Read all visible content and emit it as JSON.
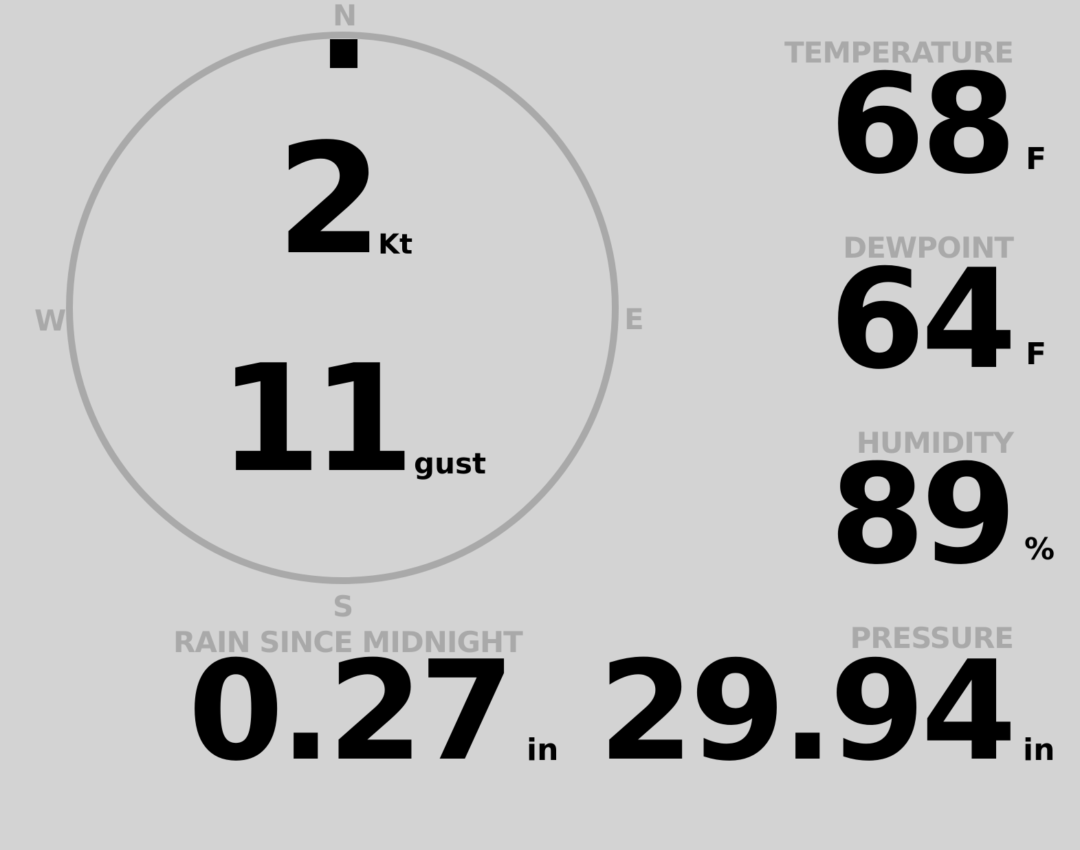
{
  "compass": {
    "north": "N",
    "south": "S",
    "east": "E",
    "west": "W",
    "wind_direction_deg": 0,
    "wind_speed": "2",
    "wind_speed_unit": "Kt",
    "gust": "11",
    "gust_unit": "gust",
    "colors": {
      "ring": "#a9a9a9",
      "needle": "#000000"
    }
  },
  "temperature": {
    "label": "TEMPERATURE",
    "value": "68",
    "unit": "F"
  },
  "dewpoint": {
    "label": "DEWPOINT",
    "value": "64",
    "unit": "F"
  },
  "humidity": {
    "label": "HUMIDITY",
    "value": "89",
    "unit": "%"
  },
  "pressure": {
    "label": "PRESSURE",
    "value": "29.94",
    "unit": "in"
  },
  "rain": {
    "label": "RAIN SINCE MIDNIGHT",
    "value": "0.27",
    "unit": "in"
  },
  "colors": {
    "background": "#d3d3d3",
    "label": "#a9a9a9",
    "value": "#000000"
  }
}
